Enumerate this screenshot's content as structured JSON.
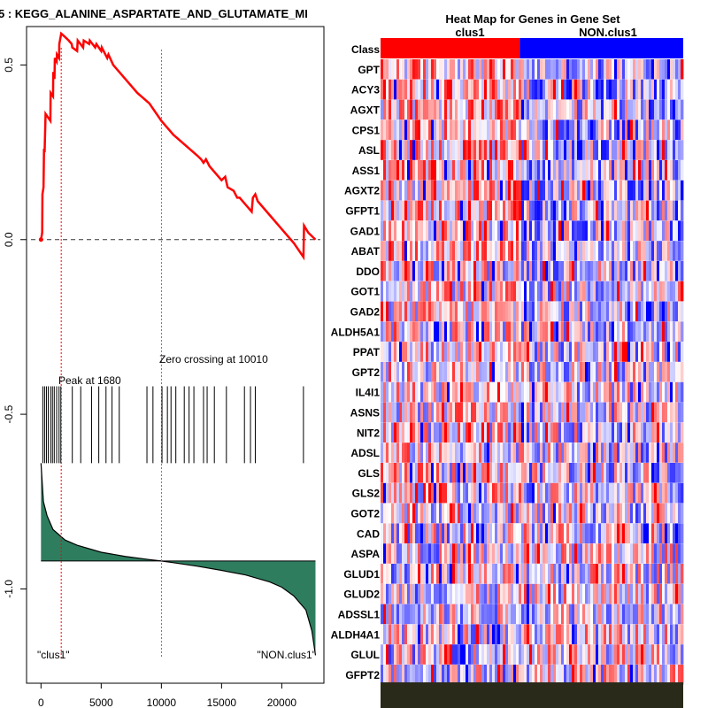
{
  "chart_data": [
    {
      "type": "line",
      "title": "KEGG_ALANINE_ASPARTATE_AND_GLUTAMATE_METABOLISM",
      "title_visible": "5 : KEGG_ALANINE_ASPARTATE_AND_GLUTAMATE_MI",
      "xlim": [
        -1200,
        23500
      ],
      "ylim": [
        -1.27,
        0.61
      ],
      "x_ticks": [
        0,
        5000,
        10000,
        15000,
        20000
      ],
      "y_ticks": [
        0.5,
        0.0,
        -0.5,
        -1.0
      ],
      "y_tick_labels": [
        "0.5",
        "0.0",
        "-0.5",
        "-1.0"
      ],
      "enrichment_score": {
        "color": "#ff0000",
        "x": [
          0,
          100,
          120,
          210,
          250,
          300,
          380,
          780,
          800,
          1000,
          1020,
          1120,
          1150,
          1300,
          1320,
          1500,
          1520,
          1680,
          2000,
          2300,
          2550,
          2600,
          3000,
          3050,
          3500,
          3550,
          4000,
          4050,
          4500,
          4600,
          5000,
          5050,
          5500,
          5600,
          6000,
          7000,
          8000,
          9000,
          10000,
          11000,
          12000,
          13000,
          13300,
          13500,
          13700,
          14000,
          15000,
          15300,
          15500,
          16000,
          16300,
          16500,
          17000,
          17500,
          17600,
          17800,
          18000,
          19000,
          20000,
          21000,
          21800,
          21850,
          22200,
          22800
        ],
        "y": [
          0.0,
          0.02,
          0.13,
          0.15,
          0.26,
          0.25,
          0.36,
          0.34,
          0.42,
          0.41,
          0.48,
          0.46,
          0.52,
          0.51,
          0.53,
          0.52,
          0.56,
          0.59,
          0.58,
          0.57,
          0.56,
          0.55,
          0.54,
          0.57,
          0.55,
          0.57,
          0.56,
          0.57,
          0.55,
          0.56,
          0.54,
          0.55,
          0.52,
          0.53,
          0.5,
          0.46,
          0.42,
          0.39,
          0.34,
          0.3,
          0.27,
          0.24,
          0.23,
          0.22,
          0.23,
          0.21,
          0.17,
          0.18,
          0.15,
          0.14,
          0.12,
          0.12,
          0.1,
          0.08,
          0.12,
          0.13,
          0.11,
          0.07,
          0.03,
          -0.01,
          -0.05,
          0.04,
          0.02,
          0.0
        ]
      },
      "baseline": 0.0,
      "peak": {
        "x": 1680,
        "label": "Peak at 1680",
        "color": "#ff0000"
      },
      "zero_crossing": {
        "x": 10010,
        "label": "Zero crossing at 10010",
        "color": "#00cc00"
      },
      "gene_hits": [
        150,
        300,
        450,
        600,
        800,
        950,
        1100,
        1300,
        1500,
        1650,
        2600,
        3300,
        4200,
        4800,
        5400,
        5900,
        6500,
        8800,
        9300,
        10050,
        10500,
        10800,
        11200,
        11900,
        12300,
        12700,
        13500,
        13800,
        14400,
        15400,
        16900,
        17400,
        17800,
        21800
      ],
      "hits_y_range": [
        -0.42,
        -0.64
      ],
      "metric": {
        "color": "#2e7d5f",
        "baseline_y": -0.92,
        "x": [
          0,
          200,
          500,
          1000,
          2000,
          3000,
          5000,
          7000,
          9000,
          10000,
          11000,
          13000,
          15000,
          17000,
          19000,
          20000,
          21000,
          22000,
          22500,
          22800
        ],
        "y": [
          -0.64,
          -0.75,
          -0.79,
          -0.83,
          -0.86,
          -0.875,
          -0.895,
          -0.907,
          -0.916,
          -0.92,
          -0.925,
          -0.935,
          -0.947,
          -0.96,
          -0.98,
          -0.995,
          -1.02,
          -1.06,
          -1.12,
          -1.19
        ]
      },
      "phenotype_labels": {
        "left": "\"clus1\"",
        "right": "\"NON.clus1\""
      }
    },
    {
      "type": "heatmap",
      "title": "Heat Map for Genes in Gene Set",
      "class_label": "Class",
      "class_groups": [
        {
          "name": "clus1",
          "color": "#ff0000",
          "fraction": 0.46
        },
        {
          "name": "NON.clus1",
          "color": "#0000ff",
          "fraction": 0.54
        }
      ],
      "genes": [
        "GPT",
        "ACY3",
        "AGXT",
        "CPS1",
        "ASL",
        "ASS1",
        "AGXT2",
        "GFPT1",
        "GAD1",
        "ABAT",
        "DDO",
        "GOT1",
        "GAD2",
        "ALDH5A1",
        "PPAT",
        "GPT2",
        "IL4I1",
        "ASNS",
        "NIT2",
        "ADSL",
        "GLS",
        "GLS2",
        "GOT2",
        "CAD",
        "ASPA",
        "GLUD1",
        "GLUD2",
        "ADSSL1",
        "ALDH4A1",
        "GLUL",
        "GFPT2"
      ],
      "color_scale": [
        "#0000ff",
        "#ffffff",
        "#ff0000"
      ]
    }
  ]
}
